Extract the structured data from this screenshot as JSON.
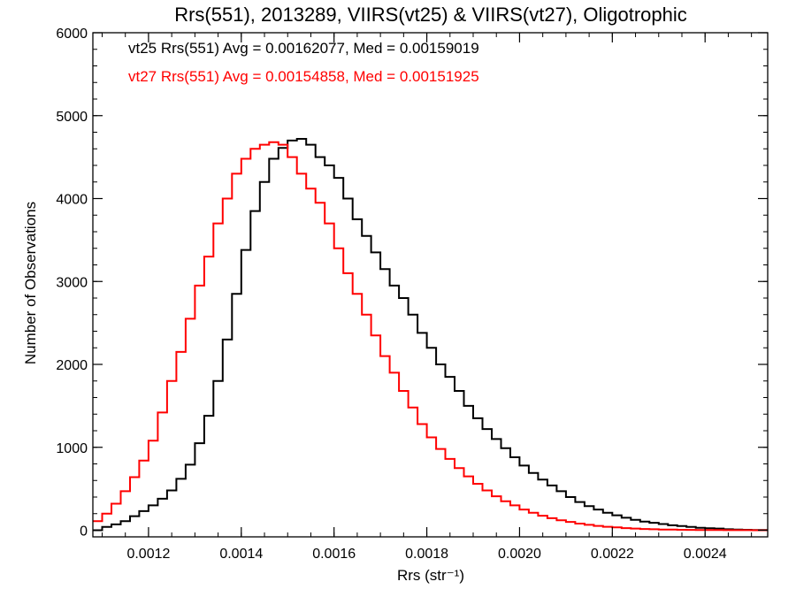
{
  "chart_data": {
    "type": "line",
    "title": "Rrs(551), 2013289, VIIRS(vt25) & VIIRS(vt27), Oligotrophic",
    "xlabel": "Rrs (str⁻¹)",
    "ylabel": "Number of Observations",
    "xlim": [
      0.00108,
      0.002535
    ],
    "ylim": [
      -80,
      6000
    ],
    "x_ticks": [
      0.0012,
      0.0014,
      0.0016,
      0.0018,
      0.002,
      0.0022,
      0.0024
    ],
    "x_tick_labels": [
      "0.0012",
      "0.0014",
      "0.0016",
      "0.0018",
      "0.0020",
      "0.0022",
      "0.0024"
    ],
    "y_ticks": [
      0,
      1000,
      2000,
      3000,
      4000,
      5000,
      6000
    ],
    "y_tick_labels": [
      "0",
      "1000",
      "2000",
      "3000",
      "4000",
      "5000",
      "6000"
    ],
    "grid": false,
    "series": [
      {
        "name": "vt25",
        "color": "#000000",
        "annotation": "vt25 Rrs(551) Avg = 0.00162077, Med = 0.00159019",
        "x": [
          0.00108,
          0.0011,
          0.00112,
          0.00114,
          0.00116,
          0.00118,
          0.0012,
          0.00122,
          0.00124,
          0.00126,
          0.00128,
          0.0013,
          0.00132,
          0.00134,
          0.00136,
          0.00138,
          0.0014,
          0.00142,
          0.00144,
          0.00146,
          0.00148,
          0.0015,
          0.00152,
          0.00154,
          0.00156,
          0.00158,
          0.0016,
          0.00162,
          0.00164,
          0.00166,
          0.00168,
          0.0017,
          0.00172,
          0.00174,
          0.00176,
          0.00178,
          0.0018,
          0.00182,
          0.00184,
          0.00186,
          0.00188,
          0.0019,
          0.00192,
          0.00194,
          0.00196,
          0.00198,
          0.002,
          0.00202,
          0.00204,
          0.00206,
          0.00208,
          0.0021,
          0.00212,
          0.00214,
          0.00216,
          0.00218,
          0.0022,
          0.00222,
          0.00224,
          0.00226,
          0.00228,
          0.0023,
          0.00232,
          0.00234,
          0.00236,
          0.00238,
          0.0024,
          0.00242,
          0.00244,
          0.00246,
          0.00248,
          0.0025,
          0.00252,
          0.002535
        ],
        "y": [
          0,
          40,
          70,
          110,
          170,
          230,
          300,
          380,
          480,
          620,
          790,
          1050,
          1380,
          1800,
          2300,
          2850,
          3380,
          3850,
          4200,
          4480,
          4610,
          4700,
          4720,
          4650,
          4500,
          4400,
          4250,
          4000,
          3750,
          3550,
          3350,
          3150,
          2950,
          2800,
          2600,
          2380,
          2200,
          2000,
          1850,
          1680,
          1500,
          1350,
          1220,
          1100,
          990,
          880,
          780,
          690,
          610,
          540,
          470,
          400,
          340,
          290,
          250,
          210,
          180,
          150,
          125,
          105,
          90,
          75,
          60,
          50,
          40,
          30,
          25,
          20,
          12,
          8,
          5,
          3,
          2,
          2
        ]
      },
      {
        "name": "vt27",
        "color": "#ff0000",
        "annotation": "vt27 Rrs(551) Avg = 0.00154858, Med = 0.00151925",
        "x": [
          0.00108,
          0.0011,
          0.00112,
          0.00114,
          0.00116,
          0.00118,
          0.0012,
          0.00122,
          0.00124,
          0.00126,
          0.00128,
          0.0013,
          0.00132,
          0.00134,
          0.00136,
          0.00138,
          0.0014,
          0.00142,
          0.00144,
          0.00146,
          0.00148,
          0.0015,
          0.00152,
          0.00154,
          0.00156,
          0.00158,
          0.0016,
          0.00162,
          0.00164,
          0.00166,
          0.00168,
          0.0017,
          0.00172,
          0.00174,
          0.00176,
          0.00178,
          0.0018,
          0.00182,
          0.00184,
          0.00186,
          0.00188,
          0.0019,
          0.00192,
          0.00194,
          0.00196,
          0.00198,
          0.002,
          0.00202,
          0.00204,
          0.00206,
          0.00208,
          0.0021,
          0.00212,
          0.00214,
          0.00216,
          0.00218,
          0.0022,
          0.00222,
          0.00224,
          0.00226,
          0.00228,
          0.0023,
          0.00232,
          0.00234,
          0.00236,
          0.00238,
          0.0024,
          0.00242,
          0.00244,
          0.00246,
          0.00248,
          0.0025,
          0.00252,
          0.002535
        ],
        "y": [
          110,
          200,
          320,
          470,
          640,
          840,
          1080,
          1420,
          1800,
          2150,
          2550,
          2950,
          3300,
          3700,
          4000,
          4300,
          4480,
          4600,
          4650,
          4680,
          4650,
          4500,
          4300,
          4120,
          3950,
          3700,
          3400,
          3100,
          2850,
          2600,
          2350,
          2100,
          1900,
          1680,
          1480,
          1280,
          1120,
          980,
          860,
          750,
          650,
          560,
          480,
          410,
          350,
          300,
          250,
          210,
          175,
          145,
          120,
          100,
          80,
          65,
          52,
          42,
          34,
          26,
          20,
          15,
          12,
          9,
          7,
          5,
          4,
          3,
          2,
          2,
          1,
          1,
          1,
          0,
          0,
          0
        ]
      }
    ]
  }
}
